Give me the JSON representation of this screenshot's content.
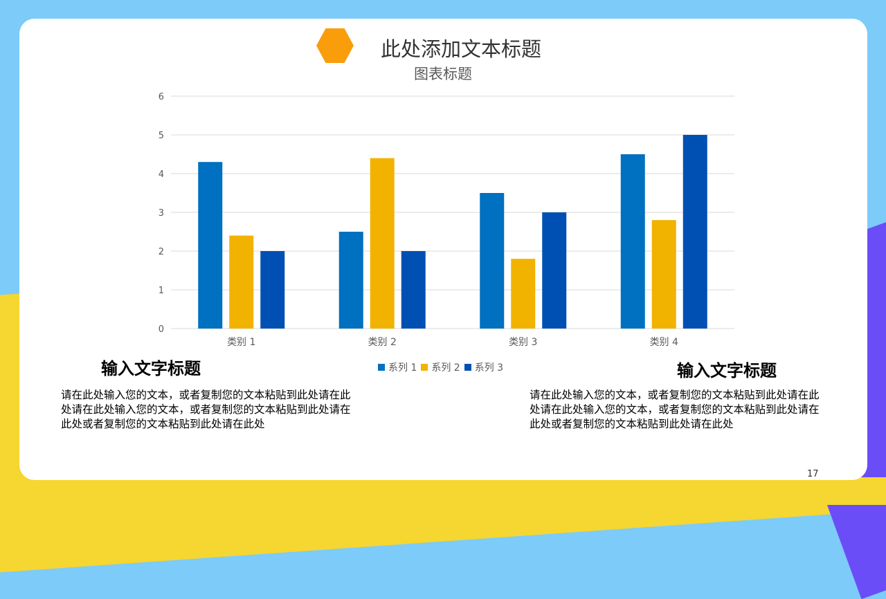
{
  "slide": {
    "title": "此处添加文本标题",
    "page_number": "17",
    "left_block": {
      "heading": "输入文字标题",
      "body": "请在此处输入您的文本，或者复制您的文本粘贴到此处请在此处请在此处输入您的文本，或者复制您的文本粘贴到此处请在此处或者复制您的文本粘贴到此处请在此处"
    },
    "right_block": {
      "heading": "输入文字标题",
      "body": "请在此处输入您的文本，或者复制您的文本粘贴到此处请在此处请在此处输入您的文本，或者复制您的文本粘贴到此处请在此处或者复制您的文本粘贴到此处请在此处"
    },
    "colors": {
      "accent_hex": "#f99d0b",
      "bg_blue": "#7ccbf9",
      "bg_yellow": "#f6d630",
      "bg_purple": "#6a4df6"
    }
  },
  "chart_data": {
    "type": "bar",
    "title": "图表标题",
    "categories": [
      "类别 1",
      "类别 2",
      "类别 3",
      "类别 4"
    ],
    "series": [
      {
        "name": "系列 1",
        "values": [
          4.3,
          2.5,
          3.5,
          4.5
        ],
        "color": "#0070c0"
      },
      {
        "name": "系列 2",
        "values": [
          2.4,
          4.4,
          1.8,
          2.8
        ],
        "color": "#f2b200"
      },
      {
        "name": "系列 3",
        "values": [
          2.0,
          2.0,
          3.0,
          5.0
        ],
        "color": "#0050b4"
      }
    ],
    "yticks": [
      "0",
      "1",
      "2",
      "3",
      "4",
      "5",
      "6"
    ],
    "ylim": [
      0,
      6
    ],
    "grid": true,
    "legend": "bottom"
  }
}
